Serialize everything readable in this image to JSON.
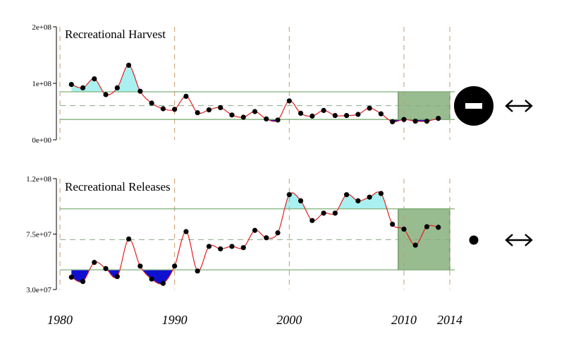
{
  "chart_data": [
    {
      "type": "line",
      "title": "Recreational Harvest",
      "y_ticks": [
        "0e+00",
        "1e+08",
        "2e+08"
      ],
      "ylim": [
        0,
        200000000
      ],
      "mean": 60500000,
      "upper_sd": 85000000,
      "lower_sd": 36000000,
      "recent_window": [
        2009.5,
        2014
      ],
      "trend_icon": "minus-circle-icon",
      "trend_icon_color": "#000000",
      "arrow_icon": "double-arrow-icon",
      "x": [
        1981,
        1982,
        1983,
        1984,
        1985,
        1986,
        1987,
        1988,
        1989,
        1990,
        1991,
        1992,
        1993,
        1994,
        1995,
        1996,
        1997,
        1998,
        1999,
        2000,
        2001,
        2002,
        2003,
        2004,
        2005,
        2006,
        2007,
        2008,
        2009,
        2010,
        2011,
        2012,
        2013
      ],
      "values": [
        98000000,
        92000000,
        108000000,
        80000000,
        92000000,
        132000000,
        86000000,
        65000000,
        55000000,
        54000000,
        77000000,
        48000000,
        53000000,
        57000000,
        44000000,
        40000000,
        50000000,
        37000000,
        35000000,
        69000000,
        47000000,
        42000000,
        52000000,
        43000000,
        43000000,
        45000000,
        56000000,
        46000000,
        32000000,
        36000000,
        33000000,
        33000000,
        38000000
      ]
    },
    {
      "type": "line",
      "title": "Recreational Releases",
      "y_ticks": [
        "3.0e+07",
        "7.5e+07",
        "1.2e+08"
      ],
      "ylim": [
        30000000,
        120000000
      ],
      "mean": 70500000,
      "upper_sd": 95500000,
      "lower_sd": 46000000,
      "recent_window": [
        2009.5,
        2014
      ],
      "trend_icon": "dot-icon",
      "trend_icon_color": "#000000",
      "arrow_icon": "double-arrow-icon",
      "x": [
        1981,
        1982,
        1983,
        1984,
        1985,
        1986,
        1987,
        1988,
        1989,
        1990,
        1991,
        1992,
        1993,
        1994,
        1995,
        1996,
        1997,
        1998,
        1999,
        2000,
        2001,
        2002,
        2003,
        2004,
        2005,
        2006,
        2007,
        2008,
        2009,
        2010,
        2011,
        2012,
        2013
      ],
      "values": [
        40000000,
        36500000,
        52000000,
        47000000,
        40500000,
        71000000,
        49000000,
        38500000,
        35000000,
        49000000,
        77000000,
        45000000,
        65000000,
        63000000,
        65000000,
        64000000,
        78000000,
        72000000,
        76000000,
        107000000,
        102000000,
        86000000,
        92000000,
        92000000,
        107000000,
        102000000,
        105000000,
        108000000,
        83000000,
        79000000,
        66000000,
        81000000,
        80500000
      ]
    }
  ],
  "x_axis": {
    "ticks": [
      1980,
      1990,
      2000,
      2010,
      2014
    ],
    "tick_labels": [
      "1980",
      "1990",
      "2000",
      "2010",
      "2014"
    ]
  },
  "colors": {
    "line": "#e02020",
    "above_fill": "#aaf0f0",
    "below_fill": "#1010d0",
    "band_line": "#7fb07a",
    "recent_box": "#99bb90",
    "recent_box_edge": "#5e8f58",
    "year_guides": "#c99a6a",
    "points": "#000000",
    "axis": "#000000"
  }
}
